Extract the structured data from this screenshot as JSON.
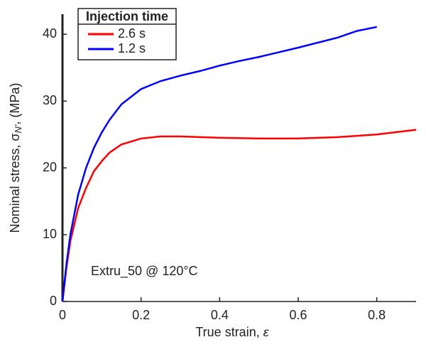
{
  "chart_data": {
    "type": "line",
    "xlabel": {
      "text": "True strain,  ",
      "symbol": "ε"
    },
    "ylabel": {
      "text": "Nominal stress,  σ",
      "subscript": "N'",
      "suffix": ", (MPa)"
    },
    "annotation": "Extru_50 @ 120°C",
    "legend_title": "Injection time",
    "legend": "upper left",
    "xlim": [
      0,
      0.9
    ],
    "xticks": [
      0,
      0.2,
      0.4,
      0.6,
      0.8
    ],
    "ylim": [
      0,
      43
    ],
    "yticks": [
      0,
      10,
      20,
      30,
      40
    ],
    "series": [
      {
        "name": "2.6 s",
        "color": "#ff0000",
        "x": [
          0,
          0.01,
          0.02,
          0.04,
          0.06,
          0.08,
          0.1,
          0.12,
          0.15,
          0.2,
          0.25,
          0.3,
          0.4,
          0.5,
          0.6,
          0.7,
          0.8,
          0.9
        ],
        "values": [
          0,
          5,
          9,
          14,
          17,
          19.5,
          21,
          22.3,
          23.5,
          24.4,
          24.7,
          24.7,
          24.5,
          24.4,
          24.4,
          24.6,
          25,
          25.7
        ]
      },
      {
        "name": "1.2 s",
        "color": "#0000ff",
        "x": [
          0,
          0.01,
          0.02,
          0.04,
          0.06,
          0.08,
          0.1,
          0.12,
          0.15,
          0.2,
          0.25,
          0.3,
          0.35,
          0.4,
          0.45,
          0.5,
          0.6,
          0.7,
          0.75,
          0.8
        ],
        "values": [
          0,
          5.5,
          10,
          16,
          20,
          23,
          25.3,
          27.2,
          29.5,
          31.8,
          33,
          33.8,
          34.5,
          35.3,
          36,
          36.6,
          38,
          39.5,
          40.5,
          41.1
        ]
      }
    ]
  }
}
